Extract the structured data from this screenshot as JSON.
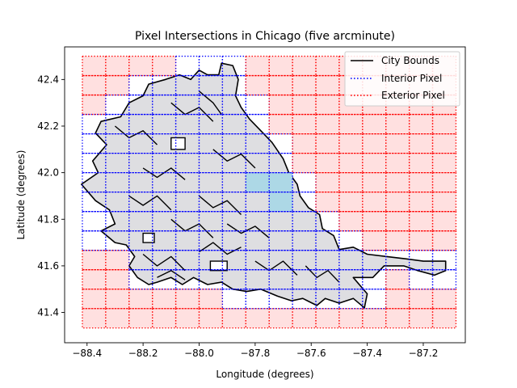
{
  "chart_data": {
    "type": "map",
    "title": "Pixel Intersections in Chicago (five arcminute)",
    "xlabel": "Longitude (degrees)",
    "ylabel": "Latitude (degrees)",
    "xlim": [
      -88.48,
      -87.05
    ],
    "ylim": [
      41.27,
      42.54
    ],
    "xticks": [
      -88.4,
      -88.2,
      -88.0,
      -87.8,
      -87.6,
      -87.4,
      -87.2
    ],
    "xtick_labels": [
      "−88.4",
      "−88.2",
      "−88.0",
      "−87.8",
      "−87.6",
      "−87.4",
      "−87.2"
    ],
    "yticks": [
      41.4,
      41.6,
      41.8,
      42.0,
      42.2,
      42.4
    ],
    "ytick_labels": [
      "41.4",
      "41.6",
      "41.8",
      "42.0",
      "42.2",
      "42.4"
    ],
    "grid": false,
    "legend_position": "top-right",
    "legend": [
      {
        "label": "City Bounds",
        "style": "solid",
        "color": "#000000"
      },
      {
        "label": "Interior Pixel",
        "style": "dotted",
        "color": "#0000ff"
      },
      {
        "label": "Exterior Pixel",
        "style": "dotted",
        "color": "#ff0000"
      }
    ],
    "colors": {
      "exterior_fill": "#ffe0e0",
      "interior_fill": "#ffffff",
      "city_fill": "#d8d8dc",
      "highlight_fill": "#add8e6",
      "interior_edge": "#0000ff",
      "exterior_edge": "#ff0000",
      "city_edge": "#000000"
    },
    "pixel_size_deg": 0.083333,
    "grid_origin": {
      "lon": -88.4167,
      "lat": 41.3333
    },
    "grid_columns": 16,
    "grid_rows": 14,
    "highlight_pixels": [
      {
        "lon": -87.833,
        "lat": 41.917
      },
      {
        "lon": -87.75,
        "lat": 41.917
      },
      {
        "lon": -87.75,
        "lat": 41.833
      }
    ],
    "city_boundary": [
      [
        -88.42,
        41.95
      ],
      [
        -88.37,
        41.88
      ],
      [
        -88.32,
        41.84
      ],
      [
        -88.3,
        41.78
      ],
      [
        -88.35,
        41.75
      ],
      [
        -88.3,
        41.7
      ],
      [
        -88.26,
        41.69
      ],
      [
        -88.23,
        41.64
      ],
      [
        -88.25,
        41.6
      ],
      [
        -88.22,
        41.55
      ],
      [
        -88.18,
        41.52
      ],
      [
        -88.15,
        41.53
      ],
      [
        -88.1,
        41.55
      ],
      [
        -88.06,
        41.52
      ],
      [
        -88.02,
        41.55
      ],
      [
        -87.97,
        41.52
      ],
      [
        -87.92,
        41.53
      ],
      [
        -87.88,
        41.5
      ],
      [
        -87.83,
        41.49
      ],
      [
        -87.78,
        41.5
      ],
      [
        -87.72,
        41.47
      ],
      [
        -87.67,
        41.45
      ],
      [
        -87.63,
        41.46
      ],
      [
        -87.58,
        41.43
      ],
      [
        -87.55,
        41.46
      ],
      [
        -87.5,
        41.44
      ],
      [
        -87.45,
        41.46
      ],
      [
        -87.41,
        41.42
      ],
      [
        -87.4,
        41.48
      ],
      [
        -87.45,
        41.55
      ],
      [
        -87.38,
        41.55
      ],
      [
        -87.34,
        41.6
      ],
      [
        -87.27,
        41.6
      ],
      [
        -87.22,
        41.58
      ],
      [
        -87.16,
        41.56
      ],
      [
        -87.12,
        41.58
      ],
      [
        -87.12,
        41.62
      ],
      [
        -87.2,
        41.62
      ],
      [
        -87.26,
        41.63
      ],
      [
        -87.33,
        41.64
      ],
      [
        -87.4,
        41.65
      ],
      [
        -87.45,
        41.68
      ],
      [
        -87.5,
        41.67
      ],
      [
        -87.52,
        41.73
      ],
      [
        -87.56,
        41.76
      ],
      [
        -87.57,
        41.82
      ],
      [
        -87.61,
        41.85
      ],
      [
        -87.64,
        41.9
      ],
      [
        -87.65,
        41.95
      ],
      [
        -87.68,
        42.0
      ],
      [
        -87.7,
        42.06
      ],
      [
        -87.74,
        42.13
      ],
      [
        -87.78,
        42.18
      ],
      [
        -87.82,
        42.23
      ],
      [
        -87.85,
        42.28
      ],
      [
        -87.87,
        42.33
      ],
      [
        -87.86,
        42.4
      ],
      [
        -87.88,
        42.46
      ],
      [
        -87.92,
        42.47
      ],
      [
        -87.93,
        42.42
      ],
      [
        -87.97,
        42.42
      ],
      [
        -88.0,
        42.44
      ],
      [
        -88.03,
        42.4
      ],
      [
        -88.07,
        42.42
      ],
      [
        -88.12,
        42.4
      ],
      [
        -88.18,
        42.38
      ],
      [
        -88.2,
        42.33
      ],
      [
        -88.25,
        42.3
      ],
      [
        -88.28,
        42.24
      ],
      [
        -88.35,
        42.22
      ],
      [
        -88.37,
        42.17
      ],
      [
        -88.33,
        42.12
      ],
      [
        -88.38,
        42.05
      ],
      [
        -88.36,
        42.0
      ],
      [
        -88.42,
        41.95
      ]
    ],
    "city_holes": [
      [
        [
          -88.1,
          42.15
        ],
        [
          -88.05,
          42.15
        ],
        [
          -88.05,
          42.1
        ],
        [
          -88.1,
          42.1
        ]
      ],
      [
        [
          -87.96,
          41.62
        ],
        [
          -87.9,
          41.62
        ],
        [
          -87.9,
          41.58
        ],
        [
          -87.96,
          41.58
        ]
      ],
      [
        [
          -88.2,
          41.74
        ],
        [
          -88.16,
          41.74
        ],
        [
          -88.16,
          41.7
        ],
        [
          -88.2,
          41.7
        ]
      ]
    ],
    "boundary_fragments": [
      [
        [
          -88.3,
          42.2
        ],
        [
          -88.25,
          42.15
        ],
        [
          -88.2,
          42.18
        ],
        [
          -88.15,
          42.12
        ]
      ],
      [
        [
          -88.1,
          42.3
        ],
        [
          -88.05,
          42.25
        ],
        [
          -88.0,
          42.28
        ],
        [
          -87.95,
          42.22
        ]
      ],
      [
        [
          -88.0,
          42.35
        ],
        [
          -87.95,
          42.3
        ],
        [
          -87.92,
          42.25
        ]
      ],
      [
        [
          -88.2,
          42.02
        ],
        [
          -88.15,
          41.98
        ],
        [
          -88.1,
          42.02
        ],
        [
          -88.05,
          41.97
        ]
      ],
      [
        [
          -88.25,
          41.9
        ],
        [
          -88.2,
          41.86
        ],
        [
          -88.15,
          41.9
        ],
        [
          -88.1,
          41.84
        ]
      ],
      [
        [
          -88.0,
          41.9
        ],
        [
          -87.95,
          41.85
        ],
        [
          -87.9,
          41.88
        ],
        [
          -87.85,
          41.82
        ]
      ],
      [
        [
          -88.1,
          41.8
        ],
        [
          -88.05,
          41.75
        ],
        [
          -88.0,
          41.78
        ],
        [
          -87.95,
          41.72
        ]
      ],
      [
        [
          -87.9,
          41.78
        ],
        [
          -87.85,
          41.74
        ],
        [
          -87.8,
          41.77
        ],
        [
          -87.75,
          41.72
        ]
      ],
      [
        [
          -88.2,
          41.65
        ],
        [
          -88.15,
          41.6
        ],
        [
          -88.1,
          41.64
        ],
        [
          -88.05,
          41.58
        ]
      ],
      [
        [
          -88.0,
          41.66
        ],
        [
          -87.95,
          41.7
        ],
        [
          -87.9,
          41.65
        ],
        [
          -87.85,
          41.68
        ]
      ],
      [
        [
          -87.8,
          41.62
        ],
        [
          -87.75,
          41.58
        ],
        [
          -87.7,
          41.62
        ],
        [
          -87.65,
          41.56
        ]
      ],
      [
        [
          -87.62,
          41.6
        ],
        [
          -87.58,
          41.55
        ],
        [
          -87.54,
          41.58
        ],
        [
          -87.5,
          41.53
        ]
      ],
      [
        [
          -87.95,
          42.1
        ],
        [
          -87.9,
          42.05
        ],
        [
          -87.85,
          42.08
        ],
        [
          -87.8,
          42.02
        ]
      ],
      [
        [
          -88.15,
          41.55
        ],
        [
          -88.1,
          41.58
        ],
        [
          -88.05,
          41.54
        ]
      ]
    ]
  }
}
